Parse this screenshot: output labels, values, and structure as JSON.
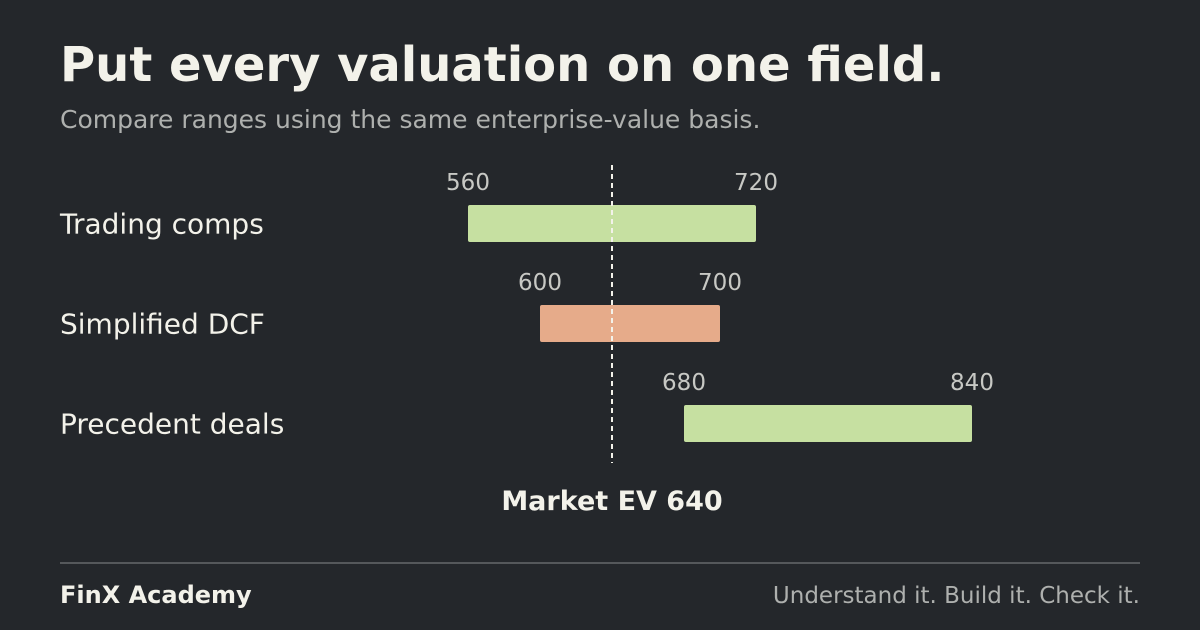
{
  "header": {
    "title": "Put every valuation on one field.",
    "subtitle": "Compare ranges using the same enterprise-value basis."
  },
  "chart_data": {
    "type": "bar",
    "orientation": "horizontal-range",
    "categories": [
      "Trading comps",
      "Simplified DCF",
      "Precedent deals"
    ],
    "ranges": [
      {
        "label": "Trading comps",
        "low": 560,
        "high": 720,
        "color": "#c6e0a1"
      },
      {
        "label": "Simplified DCF",
        "low": 600,
        "high": 700,
        "color": "#e6ab8a"
      },
      {
        "label": "Precedent deals",
        "low": 680,
        "high": 840,
        "color": "#c6e0a1"
      }
    ],
    "reference_line": {
      "value": 640,
      "label": "Market EV 640",
      "style": "dashed"
    },
    "xlim": [
      480,
      880
    ],
    "grid": false,
    "legend": "none"
  },
  "footer": {
    "brand": "FinX Academy",
    "tagline": "Understand it. Build it. Check it."
  }
}
